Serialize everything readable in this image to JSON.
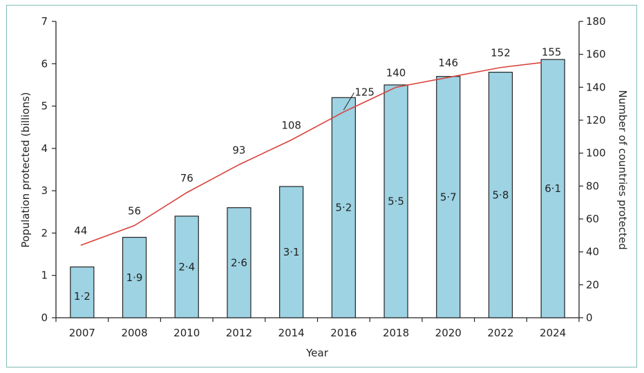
{
  "chart_data": {
    "type": "bar",
    "categories": [
      "2007",
      "2008",
      "2010",
      "2012",
      "2014",
      "2016",
      "2018",
      "2020",
      "2022",
      "2024"
    ],
    "series": [
      {
        "type": "bar",
        "axis": "left",
        "values": [
          1.2,
          1.9,
          2.4,
          2.6,
          3.1,
          5.2,
          5.5,
          5.7,
          5.8,
          6.1
        ],
        "labels": [
          "1·2",
          "1·9",
          "2·4",
          "2·6",
          "3·1",
          "5·2",
          "5·5",
          "5·7",
          "5·8",
          "6·1"
        ],
        "color": "#9dd3e3"
      },
      {
        "type": "line",
        "axis": "right",
        "values": [
          44,
          56,
          76,
          93,
          108,
          125,
          140,
          146,
          152,
          155
        ],
        "labels": [
          "44",
          "56",
          "76",
          "93",
          "108",
          "125",
          "140",
          "146",
          "152",
          "155"
        ],
        "color": "#d9413a"
      }
    ],
    "xlabel": "Year",
    "ylabel": "Population protected (billions)",
    "y2label": "Number of countries protected",
    "ylim": [
      0,
      7
    ],
    "y2lim": [
      0,
      180
    ],
    "yticks": [
      "0",
      "1",
      "2",
      "3",
      "4",
      "5",
      "6",
      "7"
    ],
    "y2ticks": [
      "0",
      "20",
      "40",
      "60",
      "80",
      "100",
      "120",
      "140",
      "160",
      "180"
    ],
    "grid": false,
    "legend": "none"
  }
}
